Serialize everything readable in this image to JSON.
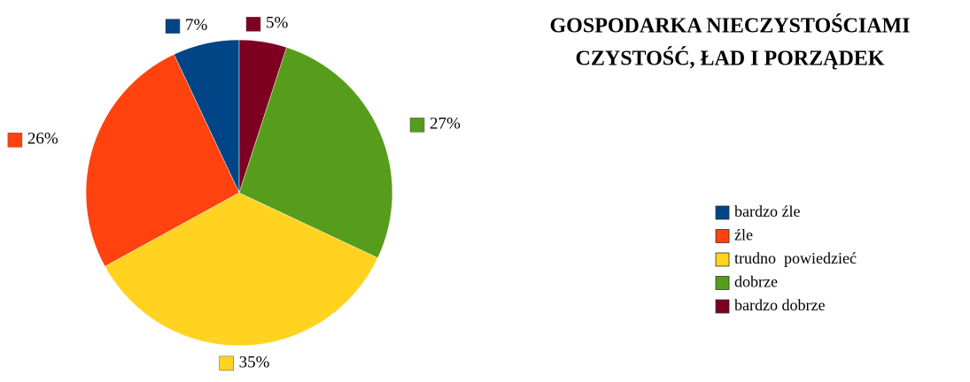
{
  "chart_data": {
    "type": "pie",
    "title": "GOSPODARKA NIECZYSTOŚCIAMI",
    "subtitle": "CZYSTOŚĆ, ŁAD I PORZĄDEK",
    "categories": [
      "bardzo źle",
      "źle",
      "trudno  powiedzieć",
      "dobrze",
      "bardzo dobrze"
    ],
    "values": [
      7,
      26,
      35,
      27,
      5
    ],
    "value_labels": [
      "7%",
      "26%",
      "35%",
      "27%",
      "5%"
    ],
    "colors": [
      "#004586",
      "#ff420e",
      "#ffd320",
      "#579d1c",
      "#7e0021"
    ],
    "legend": "right"
  }
}
